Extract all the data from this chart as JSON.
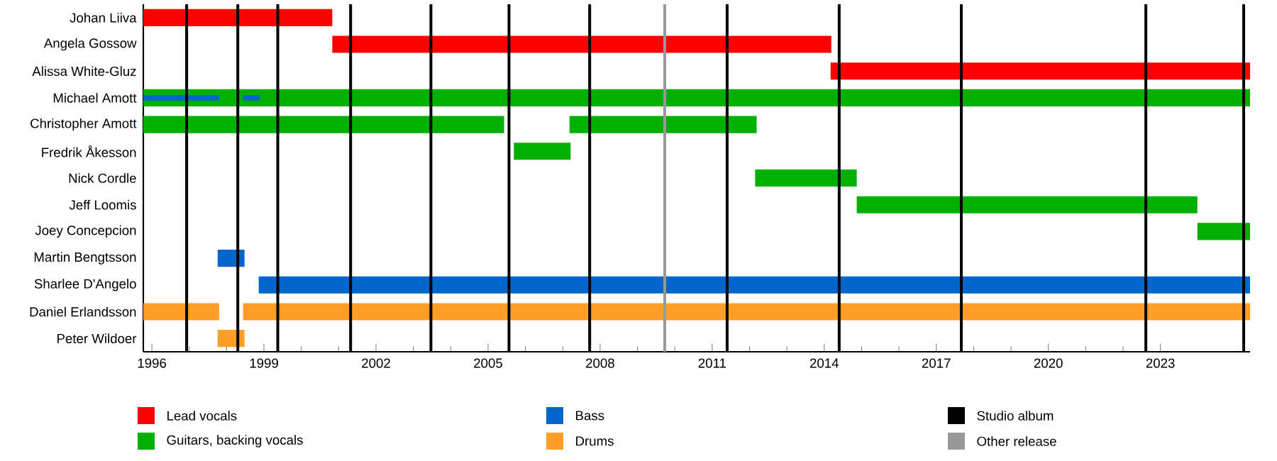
{
  "chart_data": {
    "type": "bar",
    "orientation": "horizontal",
    "legend": "bottom",
    "categories": [
      "Johan Liiva",
      "Angela Gossow",
      "Alissa White-Gluz",
      "Michael Amott",
      "Christopher Amott",
      "Fredrik Åkesson",
      "Nick Cordle",
      "Jeff Loomis",
      "Joey Concepcion",
      "Martin Bengtsson",
      "Sharlee D'Angelo",
      "Daniel Erlandsson",
      "Peter Wildoer"
    ],
    "series": [
      {
        "name": "Lead vocals",
        "color": "#ff0000",
        "base": [
          1995.77,
          2000.83,
          2014.17,
          null,
          null,
          null,
          null,
          null,
          null,
          null,
          null,
          null,
          null
        ],
        "values": [
          5.06,
          13.36,
          11.23,
          null,
          null,
          null,
          null,
          null,
          null,
          null,
          null,
          null,
          null
        ]
      },
      {
        "name": "Guitars, backing vocals",
        "color": "#00b000",
        "base": [
          null,
          null,
          null,
          1995.77,
          1995.77,
          2005.69,
          2012.15,
          2014.87,
          2023.99,
          null,
          null,
          null,
          null
        ],
        "values": [
          null,
          null,
          null,
          29.63,
          9.66,
          1.52,
          2.72,
          9.12,
          1.41,
          null,
          null,
          null,
          null
        ]
      },
      {
        "color": "#00b000",
        "base": [
          null,
          null,
          null,
          null,
          2007.18,
          null,
          null,
          null,
          null,
          null,
          null,
          null,
          null
        ],
        "values": [
          null,
          null,
          null,
          null,
          5.01,
          null,
          null,
          null,
          null,
          null,
          null,
          null,
          null
        ]
      },
      {
        "name": "Bass",
        "color": "#0066cc",
        "base": [
          null,
          null,
          null,
          1995.77,
          null,
          null,
          null,
          null,
          null,
          1997.76,
          1998.86,
          null,
          null
        ],
        "values": [
          null,
          null,
          null,
          2.03,
          null,
          null,
          null,
          null,
          null,
          0.72,
          26.54,
          null,
          null
        ]
      },
      {
        "color": "#0066cc",
        "base": [
          null,
          null,
          null,
          1998.44,
          null,
          null,
          null,
          null,
          null,
          null,
          null,
          null,
          null
        ],
        "values": [
          null,
          null,
          null,
          0.45,
          null,
          null,
          null,
          null,
          null,
          null,
          null,
          null,
          null
        ]
      },
      {
        "name": "Drums",
        "color": "#ff9f27",
        "base": [
          null,
          null,
          null,
          null,
          null,
          null,
          null,
          null,
          null,
          null,
          null,
          1995.77,
          1997.76
        ],
        "values": [
          null,
          null,
          null,
          null,
          null,
          null,
          null,
          null,
          null,
          null,
          null,
          2.03,
          0.72
        ]
      },
      {
        "color": "#ff9f27",
        "base": [
          null,
          null,
          null,
          null,
          null,
          null,
          null,
          null,
          null,
          null,
          null,
          1998.44,
          null
        ],
        "values": [
          null,
          null,
          null,
          null,
          null,
          null,
          null,
          null,
          null,
          null,
          null,
          26.96,
          null
        ]
      }
    ],
    "xlim": [
      1995.77,
      2025.4
    ],
    "xticks": [
      1996,
      1999,
      2002,
      2005,
      2008,
      2011,
      2014,
      2017,
      2020,
      2023
    ],
    "ref_lines": [
      {
        "axis": "x",
        "value": 1996.93,
        "color": "#000000",
        "label": "Studio album"
      },
      {
        "axis": "x",
        "value": 1998.3,
        "color": "#000000"
      },
      {
        "axis": "x",
        "value": 1999.37,
        "color": "#000000"
      },
      {
        "axis": "x",
        "value": 2001.32,
        "color": "#000000"
      },
      {
        "axis": "x",
        "value": 2003.47,
        "color": "#000000"
      },
      {
        "axis": "x",
        "value": 2005.56,
        "color": "#000000"
      },
      {
        "axis": "x",
        "value": 2007.72,
        "color": "#000000"
      },
      {
        "axis": "x",
        "value": 2009.73,
        "color": "#999999",
        "label": "Other release"
      },
      {
        "axis": "x",
        "value": 2011.4,
        "color": "#000000"
      },
      {
        "axis": "x",
        "value": 2014.4,
        "color": "#000000"
      },
      {
        "axis": "x",
        "value": 2017.67,
        "color": "#000000"
      },
      {
        "axis": "x",
        "value": 2022.61,
        "color": "#000000"
      },
      {
        "axis": "x",
        "value": 2025.23,
        "color": "#000000"
      }
    ]
  }
}
